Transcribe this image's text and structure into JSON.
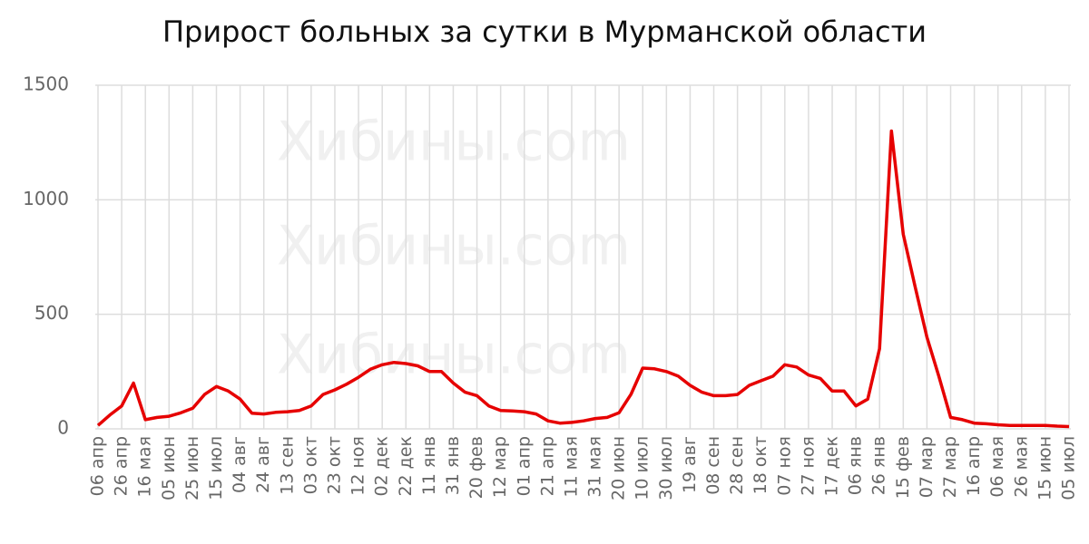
{
  "chart_data": {
    "type": "line",
    "title": "Прирост больных за сутки в Мурманской области",
    "watermark": "Хибины.com",
    "categories": [
      "06 апр",
      null,
      "26 апр",
      null,
      "16 мая",
      null,
      "05 июн",
      null,
      "25 июн",
      null,
      "15 июл",
      null,
      "04 авг",
      null,
      "24 авг",
      null,
      "13 сен",
      null,
      "03 окт",
      null,
      "23 окт",
      null,
      "12 ноя",
      null,
      "02 дек",
      null,
      "22 дек",
      null,
      "11 янв",
      null,
      "31 янв",
      null,
      "20 фев",
      null,
      "12 мар",
      null,
      "01 апр",
      null,
      "21 апр",
      null,
      "11 мая",
      null,
      "31 мая",
      null,
      "20 июн",
      null,
      "10 июл",
      null,
      "30 июл",
      null,
      "19 авг",
      null,
      "08 сен",
      null,
      "28 сен",
      null,
      "18 окт",
      null,
      "07 ноя",
      null,
      "27 ноя",
      null,
      "17 дек",
      null,
      "06 янв",
      null,
      "26 янв",
      null,
      "15 фев",
      null,
      "07 мар",
      null,
      "27 мар",
      null,
      "16 апр",
      null,
      "06 мая",
      null,
      "26 мая",
      null,
      "15 июн",
      null,
      "05 июл"
    ],
    "values": [
      15,
      60,
      100,
      200,
      40,
      50,
      55,
      70,
      90,
      150,
      185,
      165,
      130,
      68,
      65,
      72,
      75,
      80,
      100,
      150,
      170,
      195,
      225,
      260,
      280,
      290,
      285,
      275,
      250,
      250,
      200,
      160,
      145,
      100,
      80,
      78,
      75,
      65,
      35,
      25,
      28,
      35,
      45,
      50,
      70,
      150,
      265,
      262,
      250,
      230,
      190,
      160,
      145,
      145,
      150,
      190,
      210,
      230,
      280,
      270,
      235,
      220,
      165,
      165,
      100,
      130,
      350,
      1300,
      850,
      620,
      400,
      230,
      50,
      40,
      25,
      22,
      18,
      15,
      15,
      15,
      15,
      12,
      10
    ],
    "color": "#e60000",
    "ylim": [
      0,
      1500
    ],
    "yticks": [
      0,
      500,
      1000,
      1500
    ],
    "grid": true
  }
}
